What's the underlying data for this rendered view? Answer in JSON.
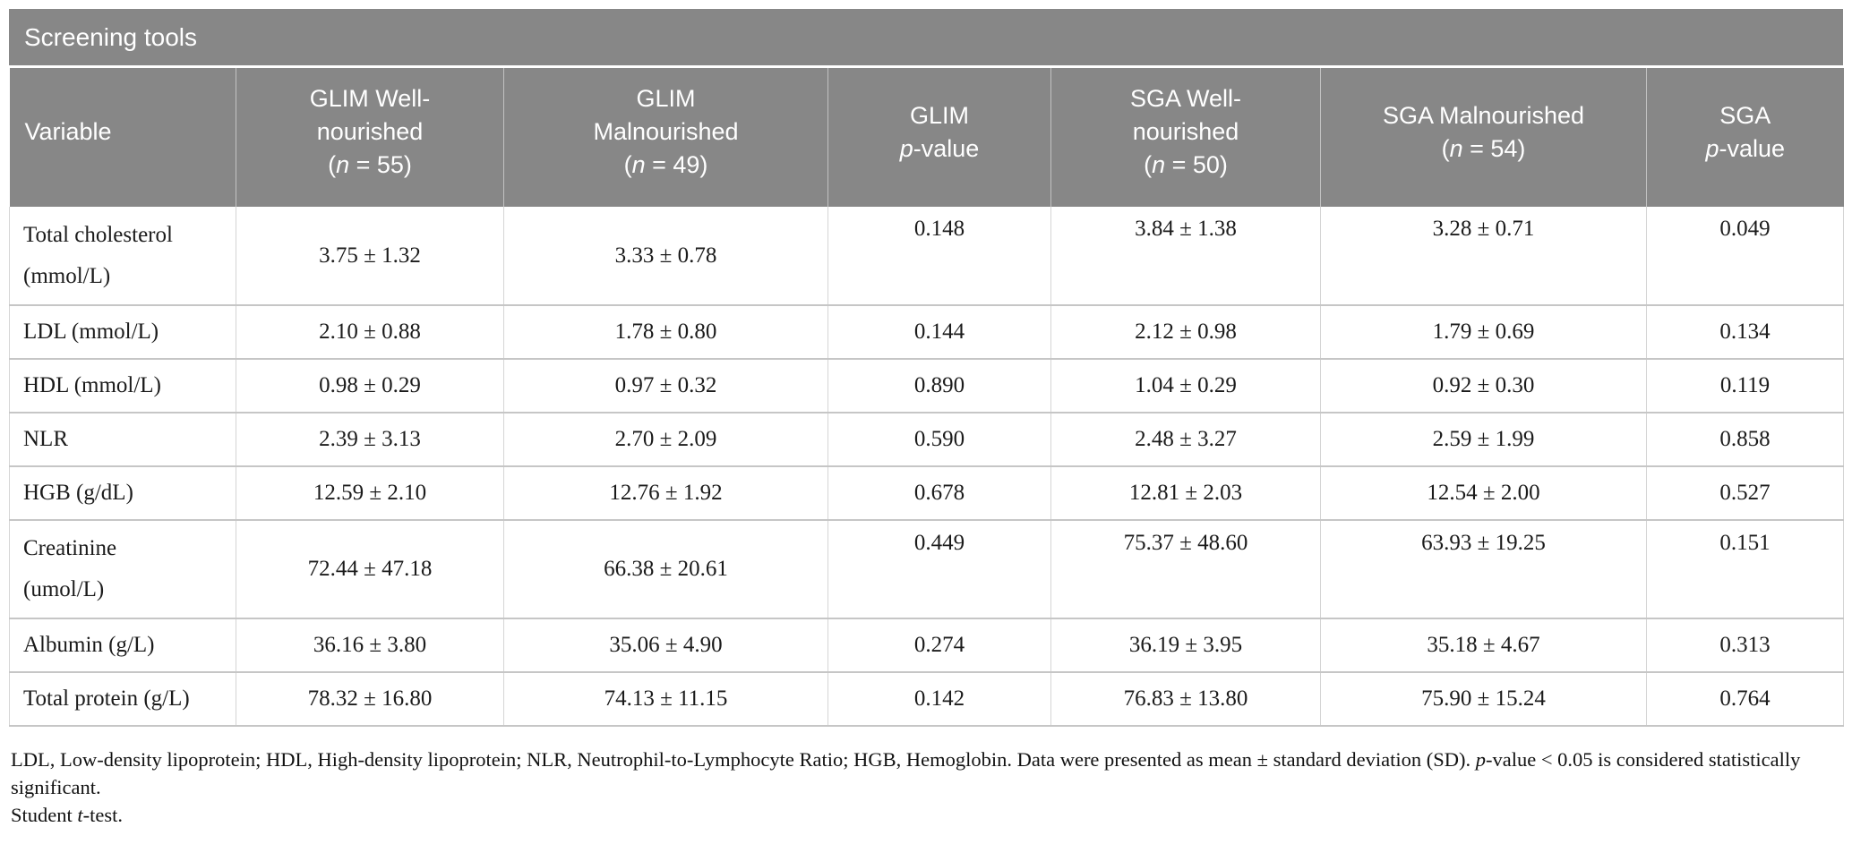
{
  "table": {
    "title": "Screening tools",
    "columns": [
      {
        "label": "Variable"
      },
      {
        "line1": "GLIM Well-",
        "line2": "nourished",
        "paren_open": "(",
        "n_italic": "n",
        "paren_rest": " = 55)"
      },
      {
        "line1": "GLIM",
        "line2": "Malnourished",
        "paren_open": "(",
        "n_italic": "n",
        "paren_rest": " = 49)"
      },
      {
        "line1": "GLIM",
        "p_italic": "p",
        "p_rest": "-value"
      },
      {
        "line1": "SGA Well-",
        "line2": "nourished",
        "paren_open": "(",
        "n_italic": "n",
        "paren_rest": " = 50)"
      },
      {
        "line1": "SGA Malnourished",
        "paren_open": "(",
        "n_italic": "n",
        "paren_rest": " = 54)"
      },
      {
        "line1": "SGA",
        "p_italic": "p",
        "p_rest": "-value"
      }
    ],
    "rows": [
      {
        "variable_line1": "Total cholesterol",
        "variable_line2": "(mmol/L)",
        "glim_well": "3.75 ± 1.32",
        "glim_mal": "3.33 ± 0.78",
        "glim_p": "0.148",
        "sga_well": "3.84 ± 1.38",
        "sga_mal": "3.28 ± 0.71",
        "sga_p": "0.049"
      },
      {
        "variable_line1": "LDL (mmol/L)",
        "glim_well": "2.10 ± 0.88",
        "glim_mal": "1.78 ± 0.80",
        "glim_p": "0.144",
        "sga_well": "2.12 ± 0.98",
        "sga_mal": "1.79 ± 0.69",
        "sga_p": "0.134"
      },
      {
        "variable_line1": "HDL (mmol/L)",
        "glim_well": "0.98 ± 0.29",
        "glim_mal": "0.97 ± 0.32",
        "glim_p": "0.890",
        "sga_well": "1.04 ± 0.29",
        "sga_mal": "0.92 ± 0.30",
        "sga_p": "0.119"
      },
      {
        "variable_line1": "NLR",
        "glim_well": "2.39 ± 3.13",
        "glim_mal": "2.70 ± 2.09",
        "glim_p": "0.590",
        "sga_well": "2.48 ± 3.27",
        "sga_mal": "2.59 ± 1.99",
        "sga_p": "0.858"
      },
      {
        "variable_line1": "HGB (g/dL)",
        "glim_well": "12.59 ± 2.10",
        "glim_mal": "12.76 ± 1.92",
        "glim_p": "0.678",
        "sga_well": "12.81 ± 2.03",
        "sga_mal": "12.54 ± 2.00",
        "sga_p": "0.527"
      },
      {
        "variable_line1": "Creatinine",
        "variable_line2": "(umol/L)",
        "glim_well": "72.44 ± 47.18",
        "glim_mal": "66.38 ± 20.61",
        "glim_p": "0.449",
        "sga_well": "75.37 ± 48.60",
        "sga_mal": "63.93 ± 19.25",
        "sga_p": "0.151"
      },
      {
        "variable_line1": "Albumin (g/L)",
        "glim_well": "36.16 ± 3.80",
        "glim_mal": "35.06 ± 4.90",
        "glim_p": "0.274",
        "sga_well": "36.19 ± 3.95",
        "sga_mal": "35.18 ± 4.67",
        "sga_p": "0.313"
      },
      {
        "variable_line1": "Total protein (g/L)",
        "glim_well": "78.32 ± 16.80",
        "glim_mal": "74.13 ± 11.15",
        "glim_p": "0.142",
        "sga_well": "76.83 ± 13.80",
        "sga_mal": "75.90 ± 15.24",
        "sga_p": "0.764"
      }
    ]
  },
  "footnotes": {
    "abbrev_part1": "LDL, Low-density lipoprotein; HDL, High-density lipoprotein; NLR, Neutrophil-to-Lymphocyte Ratio; HGB, Hemoglobin. Data were presented as mean ± standard deviation (SD). ",
    "p_italic": "p",
    "abbrev_part2": "-value < 0.05 is considered statistically significant.",
    "test_part1": "Student ",
    "t_italic": "t",
    "test_part2": "-test."
  },
  "colors": {
    "header_bg": "#878787",
    "header_text": "#ffffff",
    "body_text": "#1b1b1b",
    "grid_line": "#d5d5d5",
    "row_separator": "#c6c6c6"
  }
}
